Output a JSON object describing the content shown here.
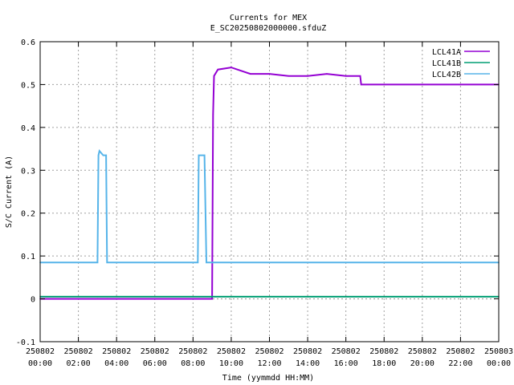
{
  "chart_data": {
    "type": "line",
    "title": "Currents for MEX",
    "subtitle": "E_SC20250802000000.sfduZ",
    "xlabel": "Time (yymmdd HH:MM)",
    "ylabel": "S/C Current (A)",
    "x_range_hours": [
      0,
      24
    ],
    "ylim": [
      -0.1,
      0.6
    ],
    "grid": true,
    "legend_position": "top-right",
    "x_ticks": [
      {
        "hour": 0,
        "date": "250802",
        "time": "00:00"
      },
      {
        "hour": 2,
        "date": "250802",
        "time": "02:00"
      },
      {
        "hour": 4,
        "date": "250802",
        "time": "04:00"
      },
      {
        "hour": 6,
        "date": "250802",
        "time": "06:00"
      },
      {
        "hour": 8,
        "date": "250802",
        "time": "08:00"
      },
      {
        "hour": 10,
        "date": "250802",
        "time": "10:00"
      },
      {
        "hour": 12,
        "date": "250802",
        "time": "12:00"
      },
      {
        "hour": 14,
        "date": "250802",
        "time": "14:00"
      },
      {
        "hour": 16,
        "date": "250802",
        "time": "16:00"
      },
      {
        "hour": 18,
        "date": "250802",
        "time": "18:00"
      },
      {
        "hour": 20,
        "date": "250802",
        "time": "20:00"
      },
      {
        "hour": 22,
        "date": "250802",
        "time": "22:00"
      },
      {
        "hour": 24,
        "date": "250803",
        "time": "00:00"
      }
    ],
    "y_ticks": [
      {
        "value": -0.1,
        "label": "-0.1"
      },
      {
        "value": 0,
        "label": "0"
      },
      {
        "value": 0.1,
        "label": "0.1"
      },
      {
        "value": 0.2,
        "label": "0.2"
      },
      {
        "value": 0.3,
        "label": "0.3"
      },
      {
        "value": 0.4,
        "label": "0.4"
      },
      {
        "value": 0.5,
        "label": "0.5"
      },
      {
        "value": 0.6,
        "label": "0.6"
      }
    ],
    "series": [
      {
        "name": "LCL41A",
        "color": "#9400d3",
        "points": [
          [
            0,
            0.0
          ],
          [
            3.0,
            0.0
          ],
          [
            3.5,
            0.0
          ],
          [
            8.9,
            0.0
          ],
          [
            9.0,
            0.0
          ],
          [
            9.05,
            0.43
          ],
          [
            9.1,
            0.52
          ],
          [
            9.3,
            0.535
          ],
          [
            10.0,
            0.54
          ],
          [
            11.0,
            0.525
          ],
          [
            12.0,
            0.525
          ],
          [
            13.0,
            0.52
          ],
          [
            14.0,
            0.52
          ],
          [
            15.0,
            0.525
          ],
          [
            16.0,
            0.52
          ],
          [
            16.75,
            0.52
          ],
          [
            16.8,
            0.5
          ],
          [
            18.0,
            0.5
          ],
          [
            20.0,
            0.5
          ],
          [
            22.0,
            0.5
          ],
          [
            24.0,
            0.5
          ]
        ]
      },
      {
        "name": "LCL41B",
        "color": "#009e73",
        "points": [
          [
            0,
            0.005
          ],
          [
            24,
            0.005
          ]
        ]
      },
      {
        "name": "LCL42B",
        "color": "#56b4e9",
        "points": [
          [
            0,
            0.085
          ],
          [
            3.0,
            0.085
          ],
          [
            3.05,
            0.335
          ],
          [
            3.1,
            0.345
          ],
          [
            3.3,
            0.335
          ],
          [
            3.45,
            0.335
          ],
          [
            3.5,
            0.085
          ],
          [
            8.25,
            0.085
          ],
          [
            8.3,
            0.335
          ],
          [
            8.6,
            0.335
          ],
          [
            8.7,
            0.085
          ],
          [
            24,
            0.085
          ]
        ]
      }
    ]
  }
}
